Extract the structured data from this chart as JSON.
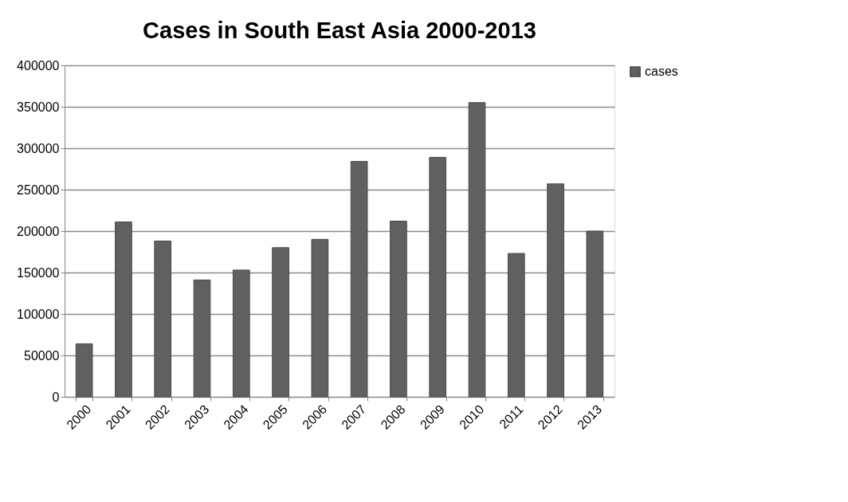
{
  "chart_data": {
    "type": "bar",
    "title": "Cases in South East Asia  2000-2013",
    "categories": [
      "2000",
      "2001",
      "2002",
      "2003",
      "2004",
      "2005",
      "2006",
      "2007",
      "2008",
      "2009",
      "2010",
      "2011",
      "2012",
      "2013"
    ],
    "series": [
      {
        "name": "cases",
        "color": "#606060",
        "values": [
          64000,
          211000,
          188000,
          141000,
          153000,
          180000,
          190000,
          284000,
          212000,
          289000,
          355000,
          173000,
          257000,
          200000
        ]
      }
    ],
    "ylim": [
      0,
      400000
    ],
    "yticks": [
      0,
      50000,
      100000,
      150000,
      200000,
      250000,
      300000,
      350000,
      400000
    ],
    "grid": "y",
    "legend": "right"
  }
}
